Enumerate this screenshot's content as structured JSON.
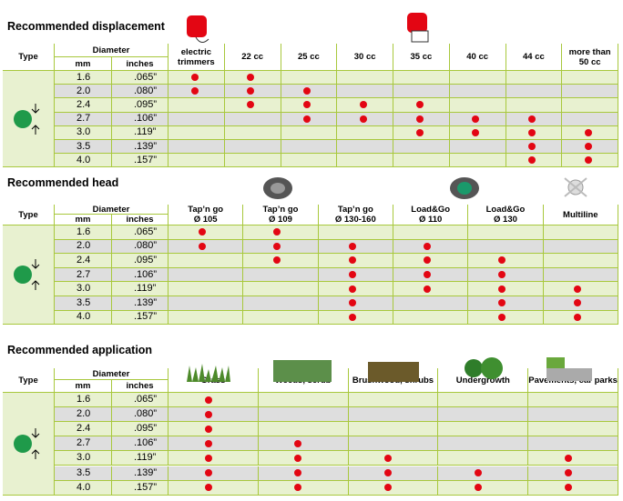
{
  "tables": [
    {
      "title": "Recommended displacement",
      "type_label": "Type",
      "diameter_label": "Diameter",
      "mm_label": "mm",
      "inches_label": "inches",
      "columns": [
        "electric\ntrimmers",
        "22 cc",
        "25 cc",
        "30 cc",
        "35 cc",
        "40 cc",
        "44 cc",
        "more than\n50 cc"
      ],
      "rows": [
        {
          "mm": "1.6",
          "inches": ".065”",
          "dots": [
            true,
            true,
            false,
            false,
            false,
            false,
            false,
            false
          ]
        },
        {
          "mm": "2.0",
          "inches": ".080”",
          "dots": [
            true,
            true,
            true,
            false,
            false,
            false,
            false,
            false
          ]
        },
        {
          "mm": "2.4",
          "inches": ".095”",
          "dots": [
            false,
            true,
            true,
            true,
            true,
            false,
            false,
            false
          ]
        },
        {
          "mm": "2.7",
          "inches": ".106”",
          "dots": [
            false,
            false,
            true,
            true,
            true,
            true,
            true,
            false
          ]
        },
        {
          "mm": "3.0",
          "inches": ".119”",
          "dots": [
            false,
            false,
            false,
            false,
            true,
            true,
            true,
            true
          ]
        },
        {
          "mm": "3.5",
          "inches": ".139”",
          "dots": [
            false,
            false,
            false,
            false,
            false,
            false,
            true,
            true
          ]
        },
        {
          "mm": "4.0",
          "inches": ".157”",
          "dots": [
            false,
            false,
            false,
            false,
            false,
            false,
            true,
            true
          ]
        }
      ]
    },
    {
      "title": "Recommended head",
      "type_label": "Type",
      "diameter_label": "Diameter",
      "mm_label": "mm",
      "inches_label": "inches",
      "columns": [
        "Tap’n go\nØ 105",
        "Tap’n go\nØ 109",
        "Tap’n go\nØ 130-160",
        "Load&Go\nØ 110",
        "Load&Go\nØ 130",
        "Multiline"
      ],
      "rows": [
        {
          "mm": "1.6",
          "inches": ".065”",
          "dots": [
            true,
            true,
            false,
            false,
            false,
            false
          ]
        },
        {
          "mm": "2.0",
          "inches": ".080”",
          "dots": [
            true,
            true,
            true,
            true,
            false,
            false
          ]
        },
        {
          "mm": "2.4",
          "inches": ".095”",
          "dots": [
            false,
            true,
            true,
            true,
            true,
            false
          ]
        },
        {
          "mm": "2.7",
          "inches": ".106”",
          "dots": [
            false,
            false,
            true,
            true,
            true,
            false
          ]
        },
        {
          "mm": "3.0",
          "inches": ".119”",
          "dots": [
            false,
            false,
            true,
            true,
            true,
            true
          ]
        },
        {
          "mm": "3.5",
          "inches": ".139”",
          "dots": [
            false,
            false,
            true,
            false,
            true,
            true
          ]
        },
        {
          "mm": "4.0",
          "inches": ".157”",
          "dots": [
            false,
            false,
            true,
            false,
            true,
            true
          ]
        }
      ]
    },
    {
      "title": "Recommended application",
      "type_label": "Type",
      "diameter_label": "Diameter",
      "mm_label": "mm",
      "inches_label": "inches",
      "columns": [
        "Grass",
        "Weeds, scrub",
        "Brushwood, shrubs",
        "Undergrowth",
        "Pavements, car parks"
      ],
      "rows": [
        {
          "mm": "1.6",
          "inches": ".065”",
          "dots": [
            true,
            false,
            false,
            false,
            false
          ]
        },
        {
          "mm": "2.0",
          "inches": ".080”",
          "dots": [
            true,
            false,
            false,
            false,
            false
          ]
        },
        {
          "mm": "2.4",
          "inches": ".095”",
          "dots": [
            true,
            false,
            false,
            false,
            false
          ]
        },
        {
          "mm": "2.7",
          "inches": ".106”",
          "dots": [
            true,
            true,
            false,
            false,
            false
          ]
        },
        {
          "mm": "3.0",
          "inches": ".119”",
          "dots": [
            true,
            true,
            true,
            false,
            true
          ]
        },
        {
          "mm": "3.5",
          "inches": ".139”",
          "dots": [
            true,
            true,
            true,
            true,
            true
          ]
        },
        {
          "mm": "4.0",
          "inches": ".157”",
          "dots": [
            true,
            true,
            true,
            true,
            true
          ]
        }
      ]
    }
  ]
}
